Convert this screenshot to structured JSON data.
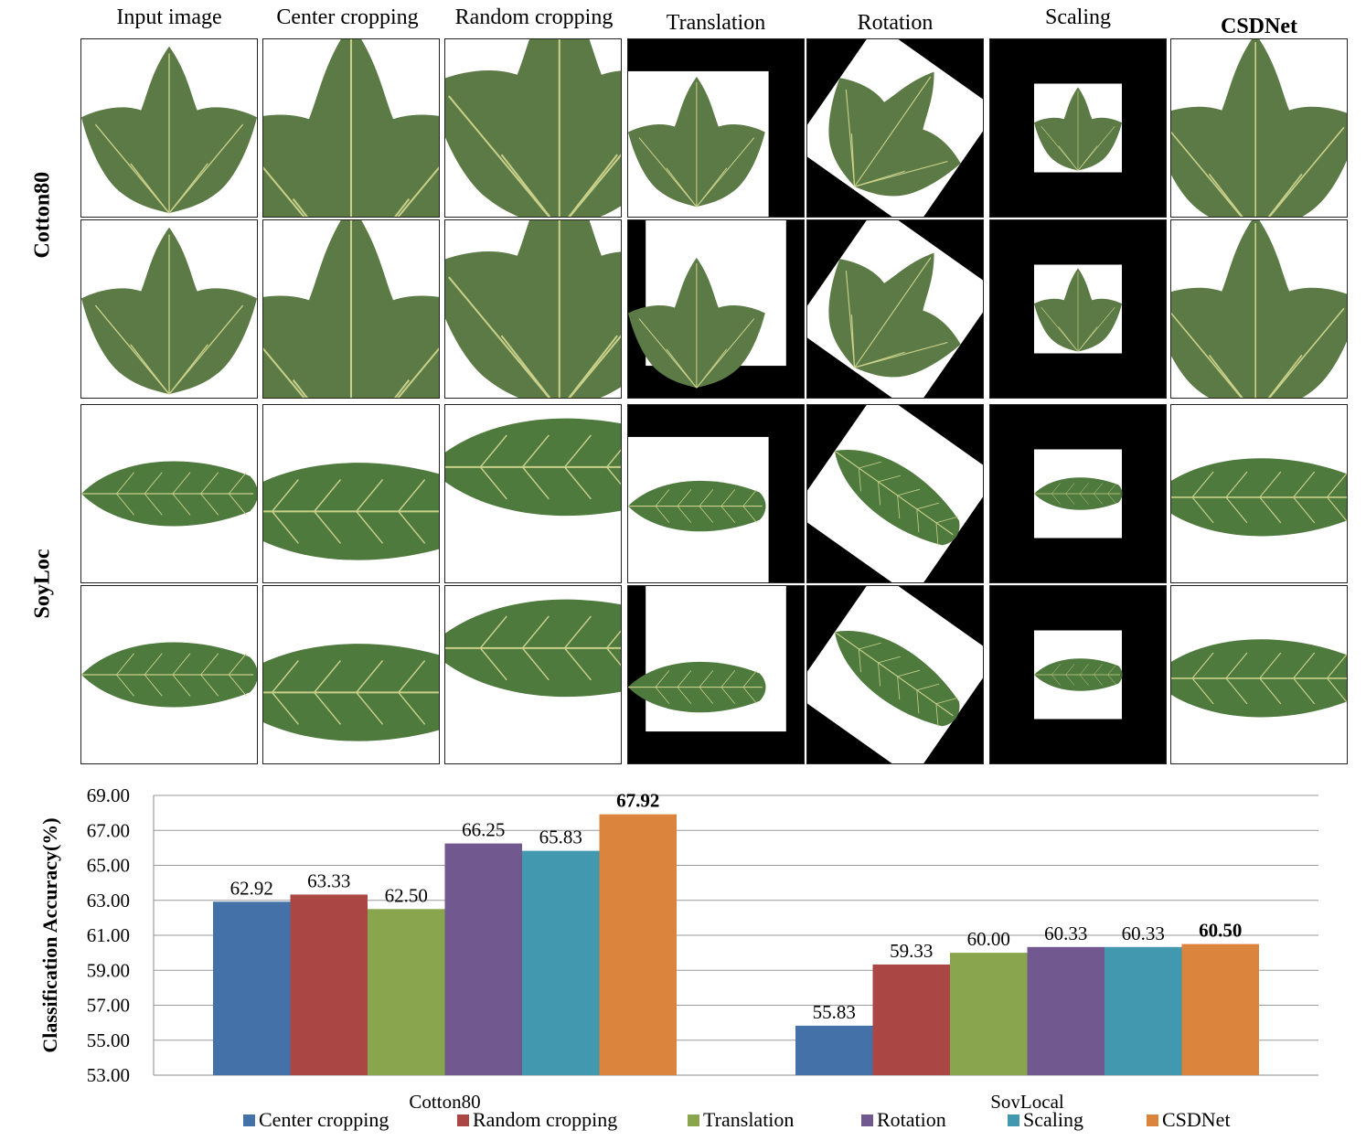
{
  "figure": {
    "column_titles": [
      "Input image",
      "Center cropping",
      "Random cropping",
      "Translation",
      "Rotation",
      "Scaling",
      "CSDNet"
    ],
    "row_groups": [
      "Cotton80",
      "SoyLoc"
    ],
    "leaf_colors": {
      "cotton": "#5c7a45",
      "soy": "#4f7a3e",
      "vein": "#c9d08a",
      "pad": "#000000"
    }
  },
  "chart_data": {
    "type": "bar",
    "categories": [
      "Cotton80",
      "SoyLocal"
    ],
    "series": [
      {
        "name": "Center cropping",
        "color": "#4472a8",
        "values": [
          62.92,
          55.83
        ]
      },
      {
        "name": "Random cropping",
        "color": "#aa4643",
        "values": [
          63.33,
          59.33
        ]
      },
      {
        "name": "Translation",
        "color": "#89a54e",
        "values": [
          62.5,
          60.0
        ]
      },
      {
        "name": "Rotation",
        "color": "#71588f",
        "values": [
          66.25,
          60.33
        ]
      },
      {
        "name": "Scaling",
        "color": "#4198af",
        "values": [
          65.83,
          60.33
        ]
      },
      {
        "name": "CSDNet",
        "color": "#db843d",
        "values": [
          67.92,
          60.5
        ]
      }
    ],
    "value_labels": [
      [
        "62.92",
        "55.83"
      ],
      [
        "63.33",
        "59.33"
      ],
      [
        "62.50",
        "60.00"
      ],
      [
        "66.25",
        "60.33"
      ],
      [
        "65.83",
        "60.33"
      ],
      [
        "67.92",
        "60.50"
      ]
    ],
    "bold_series": "CSDNet",
    "ylabel": "Classification Accuracy(%)",
    "xlabel": "",
    "ylim": [
      53,
      69
    ],
    "yticks": [
      "53.00",
      "55.00",
      "57.00",
      "59.00",
      "61.00",
      "63.00",
      "65.00",
      "67.00",
      "69.00"
    ],
    "grid": true,
    "legend_position": "bottom"
  }
}
